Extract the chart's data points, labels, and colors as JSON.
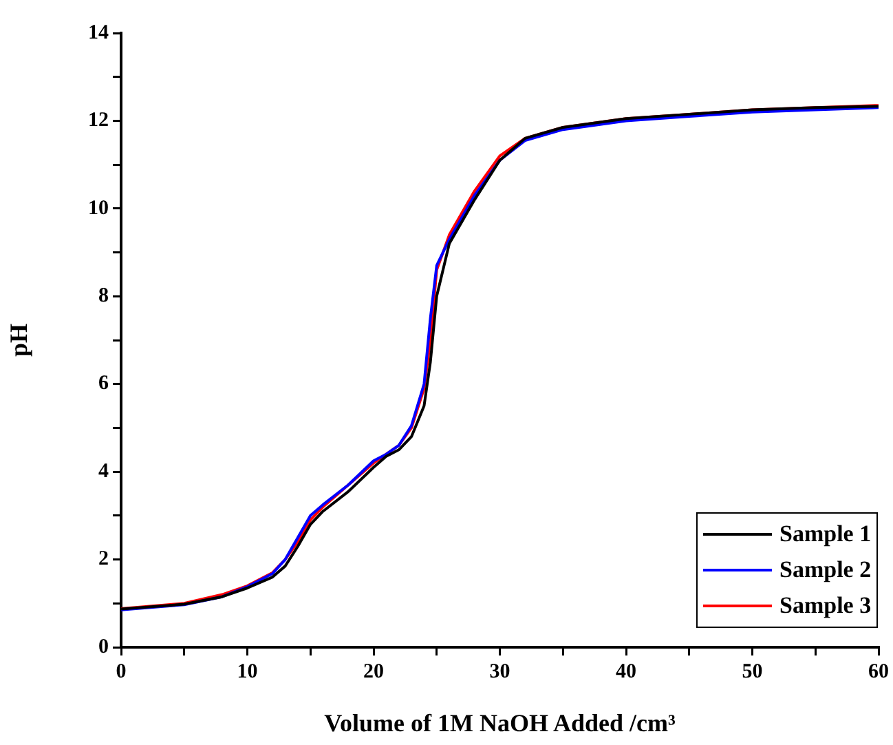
{
  "chart_data": {
    "type": "line",
    "xlabel": "Volume of 1M NaOH Added /cm³",
    "ylabel": "pH",
    "x": [
      0,
      5,
      8,
      10,
      12,
      13,
      14,
      15,
      16,
      18,
      20,
      21,
      22,
      23,
      24,
      24.5,
      25,
      26,
      28,
      30,
      32,
      35,
      40,
      45,
      50,
      55,
      60
    ],
    "series": [
      {
        "name": "Sample 1",
        "color": "#000000",
        "values": [
          0.87,
          0.98,
          1.15,
          1.35,
          1.6,
          1.85,
          2.3,
          2.8,
          3.1,
          3.55,
          4.1,
          4.35,
          4.5,
          4.8,
          5.5,
          6.5,
          8.0,
          9.2,
          10.2,
          11.1,
          11.6,
          11.85,
          12.05,
          12.15,
          12.25,
          12.3,
          12.33
        ]
      },
      {
        "name": "Sample 2",
        "color": "#0000ff",
        "values": [
          0.85,
          0.97,
          1.15,
          1.38,
          1.68,
          2.0,
          2.5,
          3.0,
          3.25,
          3.7,
          4.25,
          4.4,
          4.6,
          5.05,
          6.0,
          7.5,
          8.7,
          9.3,
          10.3,
          11.1,
          11.55,
          11.8,
          12.0,
          12.1,
          12.2,
          12.25,
          12.3
        ]
      },
      {
        "name": "Sample 3",
        "color": "#ff0000",
        "values": [
          0.88,
          1.0,
          1.2,
          1.4,
          1.7,
          2.0,
          2.4,
          2.9,
          3.2,
          3.7,
          4.2,
          4.4,
          4.6,
          5.0,
          5.9,
          7.0,
          8.6,
          9.4,
          10.4,
          11.2,
          11.6,
          11.85,
          12.05,
          12.15,
          12.25,
          12.3,
          12.35
        ]
      }
    ],
    "xlim": [
      0,
      60
    ],
    "xticks": [
      0,
      {
        "value": 5,
        "label": null
      },
      10,
      {
        "value": 15,
        "label": null
      },
      20,
      {
        "value": 25,
        "label": null
      },
      30,
      {
        "value": 35,
        "label": null
      },
      40,
      {
        "value": 45,
        "label": null
      },
      50,
      {
        "value": 55,
        "label": null
      },
      60
    ],
    "ylim": [
      0,
      14
    ],
    "yticks": [
      0,
      {
        "value": 1,
        "label": null
      },
      2,
      {
        "value": 3,
        "label": null
      },
      4,
      {
        "value": 5,
        "label": null
      },
      6,
      {
        "value": 7,
        "label": null
      },
      8,
      {
        "value": 9,
        "label": null
      },
      10,
      {
        "value": 11,
        "label": null
      },
      12,
      {
        "value": 13,
        "label": null
      },
      14
    ],
    "grid": false,
    "legend": "bottom right",
    "marker": "none",
    "line_style": "solid"
  }
}
